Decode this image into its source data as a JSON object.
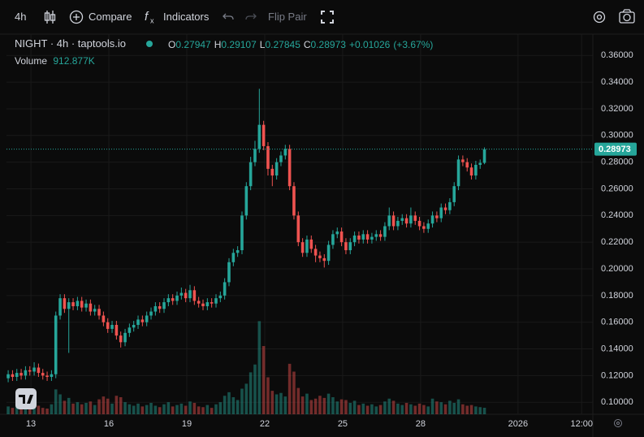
{
  "toolbar": {
    "interval": "4h",
    "compare": "Compare",
    "indicators": "Indicators",
    "flip_pair": "Flip Pair"
  },
  "chart_data": {
    "type": "candlestick",
    "title": "NIGHT · 4h · taptools.io",
    "change": "+0.01026",
    "change_pct": "(+3.67%)",
    "ohlc_letters": [
      "O",
      "H",
      "L",
      "C"
    ],
    "up_color": "#26a69a",
    "down_color": "#ef5350",
    "x": [
      12.125,
      12.292,
      12.458,
      12.625,
      12.792,
      12.958,
      13.125,
      13.292,
      13.458,
      13.625,
      13.792,
      13.958,
      14.125,
      14.292,
      14.458,
      14.625,
      14.792,
      14.958,
      15.125,
      15.292,
      15.458,
      15.625,
      15.792,
      15.958,
      16.125,
      16.292,
      16.458,
      16.625,
      16.792,
      16.958,
      17.125,
      17.292,
      17.458,
      17.625,
      17.792,
      17.958,
      18.125,
      18.292,
      18.458,
      18.625,
      18.792,
      18.958,
      19.125,
      19.292,
      19.458,
      19.625,
      19.792,
      19.958,
      20.125,
      20.292,
      20.458,
      20.625,
      20.792,
      20.958,
      21.125,
      21.292,
      21.458,
      21.625,
      21.792,
      21.958,
      22.125,
      22.292,
      22.458,
      22.625,
      22.792,
      22.958,
      23.125,
      23.292,
      23.458,
      23.625,
      23.792,
      23.958,
      24.125,
      24.292,
      24.458,
      24.625,
      24.792,
      24.958,
      25.125,
      25.292,
      25.458,
      25.625,
      25.792,
      25.958,
      26.125,
      26.292,
      26.458,
      26.625,
      26.792,
      26.958,
      27.125,
      27.292,
      27.458,
      27.625,
      27.792,
      27.958,
      28.125,
      28.292,
      28.458,
      28.625,
      28.792,
      28.958,
      29.125,
      29.292,
      29.458,
      29.625,
      29.792,
      29.958,
      30.125,
      30.292,
      30.458
    ],
    "open": [
      0.118,
      0.121,
      0.119,
      0.122,
      0.12,
      0.124,
      0.123,
      0.126,
      0.122,
      0.12,
      0.119,
      0.121,
      0.165,
      0.178,
      0.17,
      0.175,
      0.172,
      0.176,
      0.171,
      0.174,
      0.168,
      0.17,
      0.165,
      0.16,
      0.155,
      0.158,
      0.15,
      0.145,
      0.152,
      0.156,
      0.158,
      0.162,
      0.16,
      0.165,
      0.168,
      0.172,
      0.17,
      0.175,
      0.178,
      0.176,
      0.18,
      0.182,
      0.178,
      0.184,
      0.176,
      0.174,
      0.172,
      0.175,
      0.174,
      0.178,
      0.18,
      0.19,
      0.205,
      0.212,
      0.214,
      0.24,
      0.262,
      0.28,
      0.29,
      0.308,
      0.292,
      0.275,
      0.27,
      0.28,
      0.285,
      0.29,
      0.262,
      0.24,
      0.22,
      0.212,
      0.222,
      0.215,
      0.21,
      0.208,
      0.206,
      0.218,
      0.226,
      0.228,
      0.22,
      0.214,
      0.22,
      0.225,
      0.222,
      0.226,
      0.222,
      0.224,
      0.226,
      0.224,
      0.232,
      0.24,
      0.232,
      0.236,
      0.238,
      0.234,
      0.24,
      0.236,
      0.232,
      0.23,
      0.234,
      0.24,
      0.238,
      0.246,
      0.244,
      0.25,
      0.262,
      0.282,
      0.28,
      0.276,
      0.27,
      0.278,
      0.27947
    ],
    "high": [
      0.124,
      0.124,
      0.125,
      0.125,
      0.127,
      0.127,
      0.13,
      0.129,
      0.125,
      0.123,
      0.124,
      0.168,
      0.181,
      0.181,
      0.178,
      0.178,
      0.179,
      0.179,
      0.177,
      0.177,
      0.173,
      0.173,
      0.168,
      0.163,
      0.161,
      0.161,
      0.153,
      0.155,
      0.159,
      0.161,
      0.165,
      0.165,
      0.168,
      0.171,
      0.175,
      0.175,
      0.178,
      0.181,
      0.181,
      0.183,
      0.186,
      0.185,
      0.188,
      0.187,
      0.179,
      0.177,
      0.178,
      0.178,
      0.181,
      0.183,
      0.193,
      0.208,
      0.215,
      0.217,
      0.243,
      0.265,
      0.284,
      0.296,
      0.335,
      0.311,
      0.295,
      0.278,
      0.283,
      0.288,
      0.293,
      0.293,
      0.265,
      0.243,
      0.223,
      0.225,
      0.225,
      0.218,
      0.213,
      0.211,
      0.221,
      0.229,
      0.231,
      0.231,
      0.223,
      0.223,
      0.228,
      0.228,
      0.229,
      0.229,
      0.227,
      0.229,
      0.229,
      0.235,
      0.246,
      0.243,
      0.239,
      0.241,
      0.241,
      0.246,
      0.243,
      0.239,
      0.235,
      0.237,
      0.243,
      0.243,
      0.249,
      0.249,
      0.253,
      0.265,
      0.285,
      0.285,
      0.283,
      0.279,
      0.281,
      0.282,
      0.29107
    ],
    "low": [
      0.115,
      0.116,
      0.116,
      0.117,
      0.117,
      0.12,
      0.12,
      0.119,
      0.117,
      0.116,
      0.116,
      0.118,
      0.162,
      0.167,
      0.137,
      0.169,
      0.169,
      0.168,
      0.168,
      0.165,
      0.165,
      0.162,
      0.157,
      0.152,
      0.152,
      0.147,
      0.141,
      0.142,
      0.149,
      0.153,
      0.155,
      0.157,
      0.157,
      0.162,
      0.165,
      0.167,
      0.167,
      0.172,
      0.173,
      0.173,
      0.177,
      0.175,
      0.175,
      0.173,
      0.171,
      0.169,
      0.169,
      0.171,
      0.171,
      0.175,
      0.177,
      0.187,
      0.202,
      0.209,
      0.211,
      0.237,
      0.259,
      0.277,
      0.287,
      0.289,
      0.27,
      0.262,
      0.267,
      0.277,
      0.282,
      0.259,
      0.237,
      0.217,
      0.209,
      0.209,
      0.212,
      0.205,
      0.205,
      0.201,
      0.203,
      0.215,
      0.223,
      0.217,
      0.211,
      0.211,
      0.217,
      0.219,
      0.219,
      0.219,
      0.219,
      0.221,
      0.221,
      0.221,
      0.229,
      0.229,
      0.229,
      0.233,
      0.231,
      0.231,
      0.233,
      0.229,
      0.227,
      0.227,
      0.231,
      0.235,
      0.235,
      0.241,
      0.241,
      0.247,
      0.259,
      0.277,
      0.273,
      0.267,
      0.267,
      0.275,
      0.27845
    ],
    "close": [
      0.121,
      0.119,
      0.122,
      0.12,
      0.124,
      0.123,
      0.126,
      0.122,
      0.12,
      0.119,
      0.121,
      0.165,
      0.178,
      0.17,
      0.175,
      0.172,
      0.176,
      0.171,
      0.174,
      0.168,
      0.17,
      0.165,
      0.16,
      0.155,
      0.158,
      0.15,
      0.145,
      0.152,
      0.156,
      0.158,
      0.162,
      0.16,
      0.165,
      0.168,
      0.172,
      0.17,
      0.175,
      0.178,
      0.176,
      0.18,
      0.182,
      0.178,
      0.184,
      0.176,
      0.174,
      0.172,
      0.175,
      0.174,
      0.178,
      0.18,
      0.19,
      0.205,
      0.212,
      0.214,
      0.24,
      0.262,
      0.28,
      0.29,
      0.308,
      0.292,
      0.275,
      0.27,
      0.28,
      0.285,
      0.29,
      0.262,
      0.24,
      0.22,
      0.212,
      0.222,
      0.215,
      0.21,
      0.208,
      0.206,
      0.218,
      0.226,
      0.228,
      0.22,
      0.214,
      0.22,
      0.225,
      0.222,
      0.226,
      0.222,
      0.224,
      0.226,
      0.224,
      0.232,
      0.24,
      0.232,
      0.236,
      0.238,
      0.234,
      0.24,
      0.236,
      0.232,
      0.23,
      0.234,
      0.24,
      0.238,
      0.246,
      0.244,
      0.25,
      0.262,
      0.282,
      0.28,
      0.276,
      0.27,
      0.278,
      0.27947,
      0.28973
    ],
    "volume": {
      "name": "Volume",
      "value_label": "912.877K",
      "lim": [
        0,
        16000000
      ],
      "values": [
        1100000,
        900000,
        1300000,
        800000,
        1500000,
        1000000,
        1700000,
        1200000,
        900000,
        800000,
        1400000,
        3500000,
        2800000,
        1900000,
        2300000,
        1500000,
        1700000,
        1400000,
        1600000,
        1800000,
        1300000,
        2100000,
        2500000,
        2200000,
        1500000,
        2600000,
        2400000,
        1700000,
        1400000,
        1200000,
        1500000,
        1100000,
        1300000,
        1600000,
        1200000,
        1000000,
        1400000,
        1700000,
        1100000,
        1300000,
        1500000,
        1200000,
        1800000,
        1600000,
        1100000,
        1000000,
        1300000,
        900000,
        1400000,
        1700000,
        2600000,
        3100000,
        2400000,
        2000000,
        3600000,
        4300000,
        5900000,
        7000000,
        13100000,
        9600000,
        5200000,
        3300000,
        2800000,
        3000000,
        2500000,
        7100000,
        6000000,
        3700000,
        2500000,
        2900000,
        2000000,
        2200000,
        2600000,
        2300000,
        2900000,
        2400000,
        1800000,
        2100000,
        2000000,
        1600000,
        1900000,
        1300000,
        1500000,
        1200000,
        1400000,
        1100000,
        1300000,
        1800000,
        2200000,
        1900000,
        1500000,
        1300000,
        1600000,
        1400000,
        1200000,
        1500000,
        1300000,
        1100000,
        2200000,
        1800000,
        1700000,
        1400000,
        1900000,
        1600000,
        2100000,
        1400000,
        1200000,
        1300000,
        1100000,
        1000000,
        912877
      ]
    },
    "xlim": [
      12.06,
      34.63
    ],
    "xticks": [
      13,
      16,
      19,
      22,
      25,
      28,
      {
        "value": 31.75,
        "label": "2026"
      },
      {
        "value": 34.2,
        "label": "12:00"
      }
    ],
    "ylim": [
      0.091,
      0.376
    ],
    "yticks": [
      {
        "value": 0.1,
        "label": "0.10000"
      },
      {
        "value": 0.12,
        "label": "0.12000"
      },
      {
        "value": 0.14,
        "label": "0.14000"
      },
      {
        "value": 0.16,
        "label": "0.16000"
      },
      {
        "value": 0.18,
        "label": "0.18000"
      },
      {
        "value": 0.2,
        "label": "0.20000"
      },
      {
        "value": 0.22,
        "label": "0.22000"
      },
      {
        "value": 0.24,
        "label": "0.24000"
      },
      {
        "value": 0.26,
        "label": "0.26000"
      },
      {
        "value": 0.28,
        "label": "0.28000"
      },
      {
        "value": 0.3,
        "label": "0.30000"
      },
      {
        "value": 0.32,
        "label": "0.32000"
      },
      {
        "value": 0.34,
        "label": "0.34000"
      },
      {
        "value": 0.36,
        "label": "0.36000"
      }
    ],
    "grid": true
  }
}
